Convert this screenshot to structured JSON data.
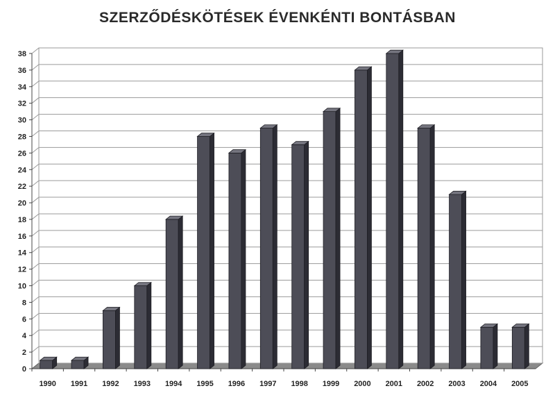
{
  "chart_data": {
    "type": "bar",
    "title": "SZERZŐDÉSKÖTÉSEK ÉVENKÉNTI BONTÁSBAN",
    "categories": [
      "1990",
      "1991",
      "1992",
      "1993",
      "1994",
      "1995",
      "1996",
      "1997",
      "1998",
      "1999",
      "2000",
      "2001",
      "2002",
      "2003",
      "2004",
      "2005"
    ],
    "values": [
      1,
      1,
      7,
      10,
      18,
      28,
      26,
      29,
      27,
      31,
      36,
      38,
      29,
      21,
      5,
      5
    ],
    "yticks": [
      0,
      2,
      4,
      6,
      8,
      10,
      12,
      14,
      16,
      18,
      20,
      22,
      24,
      26,
      28,
      30,
      32,
      34,
      36,
      38
    ],
    "ylim": [
      0,
      38
    ],
    "grid": true,
    "colors": {
      "bar_front": "#4d4d57",
      "bar_top": "#75757f",
      "bar_side": "#2c2c34",
      "floor": "#8a8a8a",
      "grid": "#9a9a9a"
    }
  }
}
